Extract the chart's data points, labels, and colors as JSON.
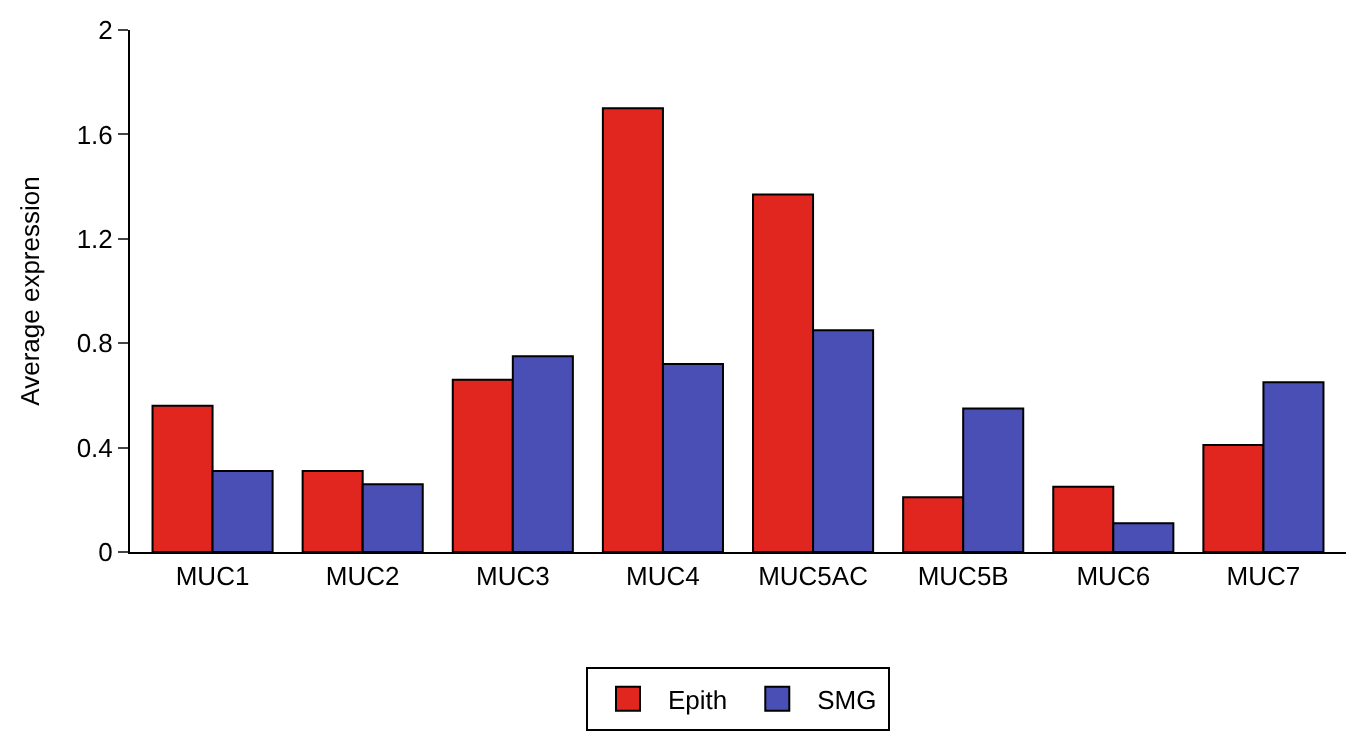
{
  "chart_data": {
    "type": "bar",
    "ylabel": "Average expression",
    "categories": [
      "MUC1",
      "MUC2",
      "MUC3",
      "MUC4",
      "MUC5AC",
      "MUC5B",
      "MUC6",
      "MUC7"
    ],
    "series": [
      {
        "name": "Epith",
        "color": "#e0261f",
        "values": [
          0.56,
          0.31,
          0.66,
          1.7,
          1.37,
          0.21,
          0.25,
          0.41
        ]
      },
      {
        "name": "SMG",
        "color": "#4a4fb5",
        "values": [
          0.31,
          0.26,
          0.75,
          0.72,
          0.85,
          0.55,
          0.11,
          0.65
        ]
      }
    ],
    "ylim": [
      0,
      2
    ],
    "yticks": [
      0,
      0.4,
      0.8,
      1.2,
      1.6,
      2
    ],
    "legend": "bottom"
  }
}
